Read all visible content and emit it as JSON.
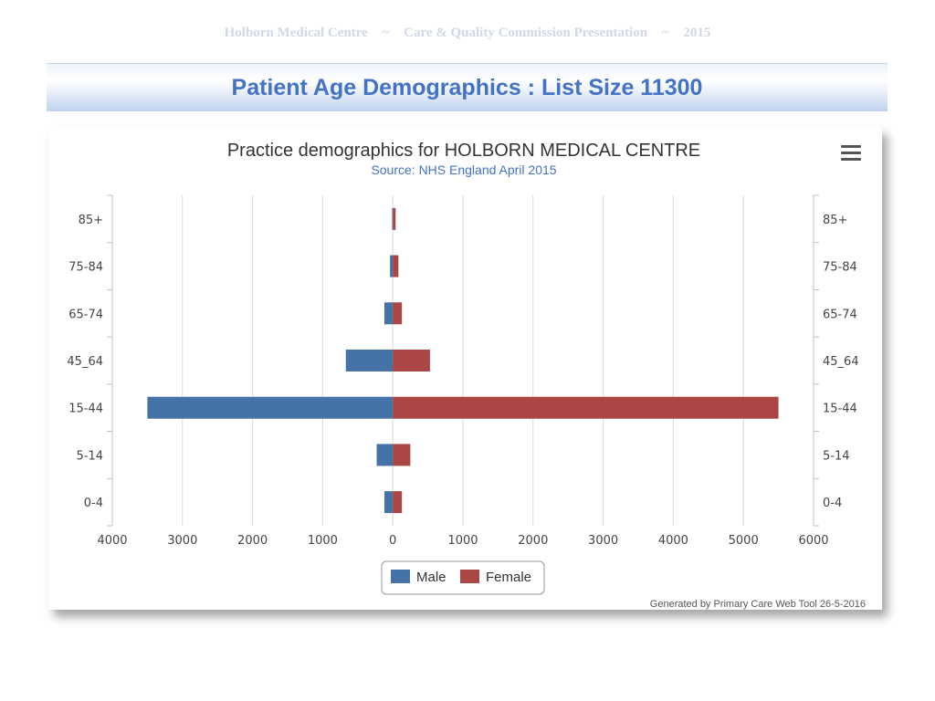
{
  "header": {
    "org": "Holborn Medical Centre",
    "sep1": "~",
    "event": "Care & Quality Commission Presentation",
    "sep2": "~",
    "year": "2015"
  },
  "slide": {
    "title": "Patient Age Demographics : List Size 11300"
  },
  "chart_data": {
    "type": "bar",
    "orientation": "horizontal-diverging",
    "title": "Practice demographics for HOLBORN MEDICAL CENTRE",
    "subtitle": "Source: NHS England April 2015",
    "categories": [
      "85+",
      "75-84",
      "65-74",
      "45_64",
      "15-44",
      "5-14",
      "0-4"
    ],
    "series": [
      {
        "name": "Male",
        "color": "#4572a7",
        "values": [
          10,
          40,
          120,
          670,
          3500,
          230,
          120
        ]
      },
      {
        "name": "Female",
        "color": "#aa4643",
        "values": [
          40,
          80,
          130,
          530,
          5500,
          250,
          130
        ]
      }
    ],
    "xticks": [
      "4000",
      "3000",
      "2000",
      "1000",
      "0",
      "1000",
      "2000",
      "3000",
      "4000",
      "5000",
      "6000"
    ],
    "xlim": [
      -4000,
      6000
    ],
    "grid": true,
    "legend": "bottom-center",
    "credit": "Generated by Primary Care Web Tool 26-5-2016"
  }
}
